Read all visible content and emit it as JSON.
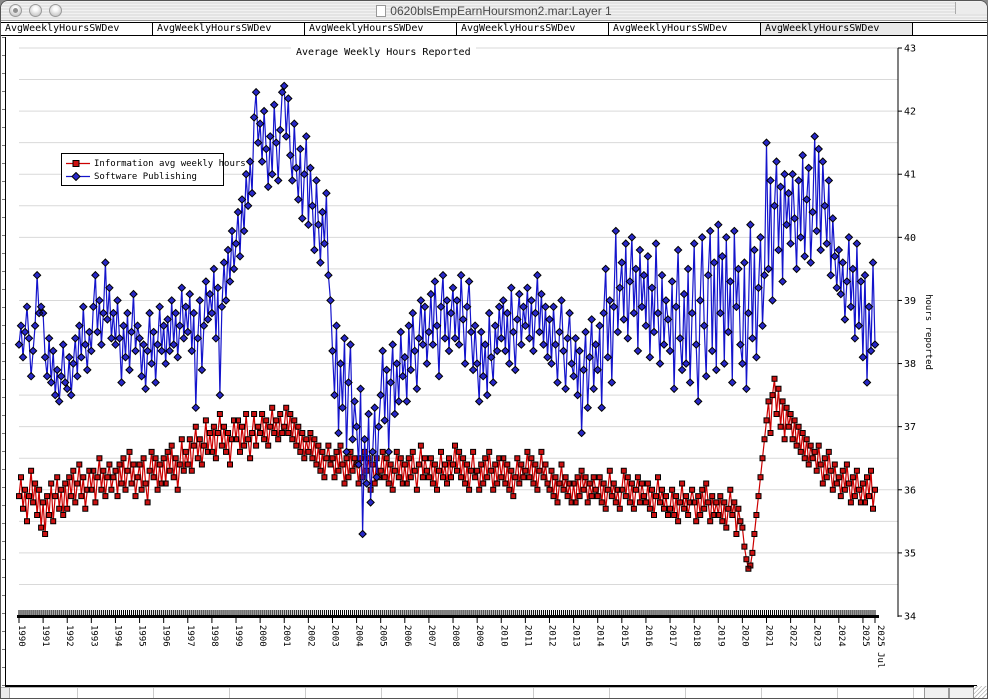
{
  "window": {
    "title": "0620blsEmpEarnHoursmon2.mar:Layer 1"
  },
  "tabs": [
    {
      "label": "AvgWeeklyHoursSWDev"
    },
    {
      "label": "AvgWeeklyHoursSWDev"
    },
    {
      "label": "AvgWeeklyHoursSWDev"
    },
    {
      "label": "AvgWeeklyHoursSWDev"
    },
    {
      "label": "AvgWeeklyHoursSWDev"
    },
    {
      "label": "AvgWeeklyHoursSWDev"
    }
  ],
  "chart_data": {
    "type": "line",
    "title": "Average Weekly Hours Reported",
    "xlabel": "",
    "ylabel": "hours reported",
    "ylim": [
      34,
      43
    ],
    "y_ticks": [
      34,
      35,
      36,
      37,
      38,
      39,
      40,
      41,
      42,
      43
    ],
    "grid_step": 0.5,
    "x_start_year": 1990,
    "x_tick_years": [
      1990,
      1991,
      1992,
      1993,
      1994,
      1995,
      1996,
      1997,
      1998,
      1999,
      2000,
      2001,
      2002,
      2003,
      2004,
      2005,
      2006,
      2007,
      2008,
      2009,
      2010,
      2011,
      2012,
      2013,
      2014,
      2015,
      2016,
      2017,
      2018,
      2019,
      2020,
      2021,
      2022,
      2023,
      2024,
      2025
    ],
    "x_end_label": "2025 Jul",
    "legend_position": "upper-left",
    "grid_color": "#d9d9d9",
    "series": [
      {
        "name": "Information avg weekly hours",
        "marker": "square",
        "line_color": "#cc0000",
        "marker_color": "#cc1111",
        "marker_stroke": "#000000",
        "values": [
          35.9,
          36.2,
          35.7,
          36.0,
          35.5,
          35.9,
          36.3,
          35.8,
          36.1,
          35.6,
          36.0,
          35.4,
          35.8,
          35.3,
          35.9,
          35.6,
          36.1,
          35.5,
          35.9,
          36.2,
          35.7,
          36.0,
          35.6,
          36.1,
          35.7,
          36.2,
          35.9,
          36.3,
          35.8,
          36.1,
          36.4,
          35.9,
          36.2,
          35.7,
          36.0,
          36.3,
          36.0,
          36.3,
          35.8,
          36.2,
          36.5,
          36.0,
          36.3,
          35.9,
          36.2,
          36.4,
          36.0,
          36.2,
          36.3,
          35.9,
          36.4,
          36.1,
          36.5,
          36.0,
          36.3,
          36.6,
          36.1,
          36.4,
          35.9,
          36.2,
          36.4,
          36.0,
          36.5,
          36.1,
          35.8,
          36.3,
          36.6,
          36.2,
          36.5,
          36.0,
          36.4,
          36.1,
          36.5,
          36.1,
          36.6,
          36.3,
          36.7,
          36.2,
          36.5,
          36.0,
          36.4,
          36.8,
          36.3,
          36.6,
          36.4,
          36.8,
          36.3,
          36.7,
          37.0,
          36.5,
          36.8,
          36.4,
          36.7,
          37.1,
          36.6,
          36.9,
          36.6,
          37.0,
          36.5,
          36.9,
          37.2,
          36.7,
          37.0,
          36.6,
          36.9,
          36.4,
          36.8,
          37.1,
          36.8,
          37.1,
          36.6,
          37.0,
          36.7,
          37.2,
          36.8,
          36.5,
          36.9,
          37.2,
          36.7,
          37.0,
          36.9,
          37.2,
          36.8,
          37.1,
          36.7,
          37.0,
          37.3,
          36.9,
          37.1,
          36.8,
          37.2,
          36.9,
          37.0,
          37.3,
          36.9,
          37.2,
          36.8,
          37.1,
          36.7,
          37.0,
          36.6,
          36.9,
          36.5,
          36.8,
          36.6,
          36.9,
          36.5,
          36.8,
          36.4,
          36.7,
          36.3,
          36.6,
          36.2,
          36.5,
          36.7,
          36.4,
          36.5,
          36.2,
          36.6,
          36.3,
          36.7,
          36.4,
          36.1,
          36.5,
          36.2,
          36.6,
          36.3,
          36.5,
          36.4,
          36.1,
          36.5,
          36.2,
          36.6,
          36.3,
          36.5,
          36.0,
          36.4,
          36.1,
          36.5,
          36.2,
          36.3,
          36.6,
          36.2,
          36.5,
          36.1,
          36.4,
          36.0,
          36.3,
          36.6,
          36.2,
          36.5,
          36.1,
          36.4,
          36.1,
          36.5,
          36.2,
          36.6,
          36.3,
          36.0,
          36.4,
          36.7,
          36.2,
          36.5,
          36.3,
          36.2,
          36.5,
          36.1,
          36.4,
          36.0,
          36.3,
          36.6,
          36.2,
          36.4,
          36.1,
          36.5,
          36.2,
          36.4,
          36.7,
          36.3,
          36.6,
          36.2,
          36.5,
          36.1,
          36.4,
          36.0,
          36.3,
          36.6,
          36.2,
          36.3,
          36.0,
          36.4,
          36.1,
          36.5,
          36.2,
          36.6,
          36.3,
          36.0,
          36.4,
          36.1,
          36.5,
          36.2,
          36.5,
          36.1,
          36.4,
          36.0,
          36.3,
          35.9,
          36.2,
          36.5,
          36.1,
          36.4,
          36.2,
          36.3,
          36.6,
          36.2,
          36.5,
          36.1,
          36.4,
          36.0,
          36.3,
          36.6,
          36.2,
          36.4,
          36.1,
          36.0,
          36.3,
          35.9,
          36.2,
          35.8,
          36.1,
          36.4,
          36.0,
          36.2,
          35.9,
          36.1,
          35.8,
          36.1,
          35.8,
          36.2,
          35.9,
          36.3,
          36.0,
          36.2,
          35.8,
          36.1,
          35.9,
          36.2,
          36.0,
          35.9,
          36.2,
          35.8,
          36.1,
          35.7,
          36.0,
          36.3,
          35.9,
          36.1,
          35.8,
          36.0,
          35.7,
          36.0,
          36.3,
          35.9,
          36.2,
          35.8,
          36.1,
          35.7,
          36.0,
          36.2,
          35.8,
          36.1,
          35.9,
          35.8,
          36.1,
          35.7,
          36.0,
          35.6,
          35.9,
          36.2,
          35.8,
          36.0,
          35.7,
          35.9,
          35.6,
          35.7,
          36.0,
          35.6,
          35.9,
          35.5,
          35.8,
          36.1,
          35.7,
          35.9,
          35.6,
          35.8,
          36.0,
          35.8,
          35.5,
          35.9,
          35.6,
          36.0,
          35.7,
          36.1,
          35.8,
          35.5,
          35.9,
          35.6,
          35.8,
          35.6,
          35.9,
          35.5,
          35.8,
          35.4,
          35.7,
          36.0,
          35.6,
          35.8,
          35.3,
          35.7,
          35.5,
          35.4,
          35.1,
          34.9,
          34.75,
          34.8,
          35.0,
          35.3,
          35.6,
          35.9,
          36.2,
          36.5,
          36.8,
          37.1,
          37.4,
          36.9,
          37.5,
          37.76,
          37.2,
          37.6,
          37.0,
          37.4,
          36.8,
          37.3,
          37.0,
          37.2,
          36.8,
          37.1,
          36.7,
          37.0,
          36.6,
          36.9,
          36.5,
          36.8,
          36.4,
          36.7,
          36.5,
          36.6,
          36.3,
          36.7,
          36.4,
          36.1,
          36.5,
          36.2,
          36.6,
          36.3,
          36.0,
          36.4,
          36.1,
          36.2,
          35.9,
          36.3,
          36.0,
          36.4,
          36.1,
          35.8,
          36.2,
          35.9,
          36.3,
          36.0,
          35.8,
          36.1,
          35.8,
          36.2,
          35.9,
          36.3,
          35.7,
          36.0
        ]
      },
      {
        "name": "Software Publishing",
        "marker": "diamond",
        "line_color": "#1414cc",
        "marker_color": "#2828c8",
        "marker_stroke": "#000000",
        "values": [
          38.3,
          38.6,
          38.1,
          38.5,
          38.9,
          38.4,
          37.8,
          38.2,
          38.6,
          39.4,
          38.8,
          38.9,
          38.8,
          38.1,
          37.8,
          38.4,
          37.7,
          38.2,
          37.5,
          37.9,
          37.4,
          37.8,
          38.3,
          37.7,
          37.6,
          38.1,
          37.5,
          38.0,
          38.4,
          37.8,
          38.6,
          38.1,
          38.9,
          38.3,
          37.9,
          38.5,
          38.2,
          38.9,
          39.4,
          38.5,
          39.0,
          38.3,
          38.8,
          39.6,
          38.7,
          39.2,
          38.4,
          38.8,
          38.3,
          39.0,
          38.4,
          37.7,
          38.6,
          38.1,
          38.8,
          37.9,
          38.5,
          39.1,
          38.2,
          38.6,
          38.4,
          37.8,
          38.3,
          37.6,
          38.2,
          38.8,
          38.0,
          38.5,
          37.7,
          38.3,
          38.9,
          38.2,
          38.6,
          38.0,
          38.7,
          38.2,
          39.0,
          38.3,
          38.8,
          38.1,
          38.6,
          39.2,
          38.4,
          38.9,
          38.5,
          39.1,
          38.2,
          38.8,
          37.3,
          38.4,
          39.0,
          37.9,
          38.6,
          39.3,
          38.7,
          39.1,
          38.8,
          39.5,
          38.4,
          39.2,
          37.5,
          38.9,
          39.6,
          39.0,
          39.8,
          39.3,
          40.1,
          39.5,
          39.9,
          40.4,
          39.7,
          40.6,
          40.1,
          41.0,
          40.5,
          41.2,
          40.7,
          41.9,
          42.3,
          41.5,
          41.8,
          41.2,
          42.0,
          41.4,
          40.8,
          41.6,
          41.0,
          42.1,
          41.5,
          40.9,
          41.7,
          42.3,
          42.4,
          41.6,
          42.2,
          41.3,
          40.9,
          41.8,
          41.1,
          40.6,
          41.4,
          40.3,
          41.0,
          41.6,
          40.2,
          41.1,
          40.5,
          39.8,
          40.9,
          40.2,
          39.6,
          40.4,
          39.9,
          40.7,
          39.4,
          39.0,
          38.2,
          37.5,
          38.6,
          36.9,
          38.0,
          37.3,
          38.4,
          36.6,
          37.7,
          38.3,
          36.8,
          37.4,
          37.0,
          36.4,
          37.6,
          35.3,
          36.8,
          36.1,
          37.2,
          35.8,
          36.6,
          37.3,
          36.2,
          37.0,
          37.5,
          38.2,
          37.1,
          37.9,
          36.6,
          37.7,
          38.3,
          37.2,
          38.0,
          37.4,
          38.5,
          37.8,
          38.1,
          37.4,
          38.6,
          37.9,
          38.8,
          38.2,
          37.6,
          38.4,
          39.0,
          38.3,
          38.9,
          38.0,
          38.5,
          39.1,
          38.3,
          39.3,
          38.6,
          37.8,
          38.9,
          39.4,
          38.4,
          39.0,
          38.2,
          38.8,
          39.2,
          38.4,
          39.0,
          38.3,
          39.4,
          38.7,
          38.0,
          38.9,
          39.3,
          38.5,
          37.9,
          38.6,
          38.0,
          37.4,
          38.5,
          37.8,
          38.3,
          37.5,
          38.8,
          38.1,
          37.7,
          38.6,
          38.2,
          38.9,
          38.4,
          39.0,
          38.2,
          38.8,
          38.0,
          39.2,
          38.5,
          37.9,
          38.7,
          39.1,
          38.3,
          38.9,
          38.6,
          39.2,
          38.4,
          39.0,
          38.2,
          38.8,
          39.4,
          38.5,
          39.1,
          38.3,
          38.9,
          38.1,
          38.7,
          38.0,
          38.9,
          38.3,
          37.7,
          38.5,
          39.0,
          38.2,
          37.6,
          38.4,
          38.8,
          38.0,
          37.8,
          38.4,
          37.5,
          38.2,
          36.9,
          37.9,
          38.5,
          37.3,
          38.1,
          38.7,
          37.6,
          38.3,
          37.9,
          38.6,
          37.3,
          38.8,
          39.5,
          38.1,
          39.0,
          37.7,
          38.9,
          40.1,
          38.5,
          39.2,
          39.6,
          38.7,
          39.9,
          38.4,
          39.3,
          40.0,
          38.8,
          39.5,
          38.2,
          39.8,
          38.9,
          39.4,
          38.6,
          39.7,
          38.1,
          39.2,
          38.5,
          39.9,
          38.8,
          38.0,
          39.4,
          38.3,
          39.0,
          38.7,
          38.2,
          39.3,
          37.6,
          38.9,
          39.8,
          38.4,
          37.9,
          39.1,
          38.0,
          39.5,
          37.7,
          38.8,
          39.9,
          38.3,
          37.4,
          39.0,
          40.0,
          38.6,
          37.8,
          39.4,
          40.1,
          38.2,
          39.6,
          37.9,
          40.2,
          38.8,
          39.7,
          38.0,
          40.0,
          38.5,
          39.3,
          37.7,
          40.1,
          38.9,
          39.5,
          38.3,
          38.0,
          39.6,
          37.6,
          38.8,
          40.2,
          38.4,
          39.8,
          38.1,
          39.2,
          40.0,
          38.6,
          39.4,
          41.5,
          39.5,
          40.9,
          39.0,
          40.5,
          41.2,
          39.8,
          40.8,
          39.3,
          41.0,
          40.2,
          40.7,
          39.9,
          41.0,
          40.3,
          39.5,
          40.9,
          40.0,
          41.3,
          39.7,
          40.6,
          41.1,
          39.6,
          40.4,
          41.6,
          40.1,
          41.4,
          39.8,
          41.2,
          40.5,
          39.9,
          40.9,
          39.4,
          40.3,
          39.7,
          39.2,
          39.8,
          39.1,
          39.6,
          38.7,
          39.3,
          40.0,
          38.9,
          39.5,
          38.4,
          39.9,
          38.6,
          39.3,
          38.1,
          39.4,
          37.7,
          38.9,
          38.2,
          39.6,
          38.3
        ]
      }
    ]
  }
}
